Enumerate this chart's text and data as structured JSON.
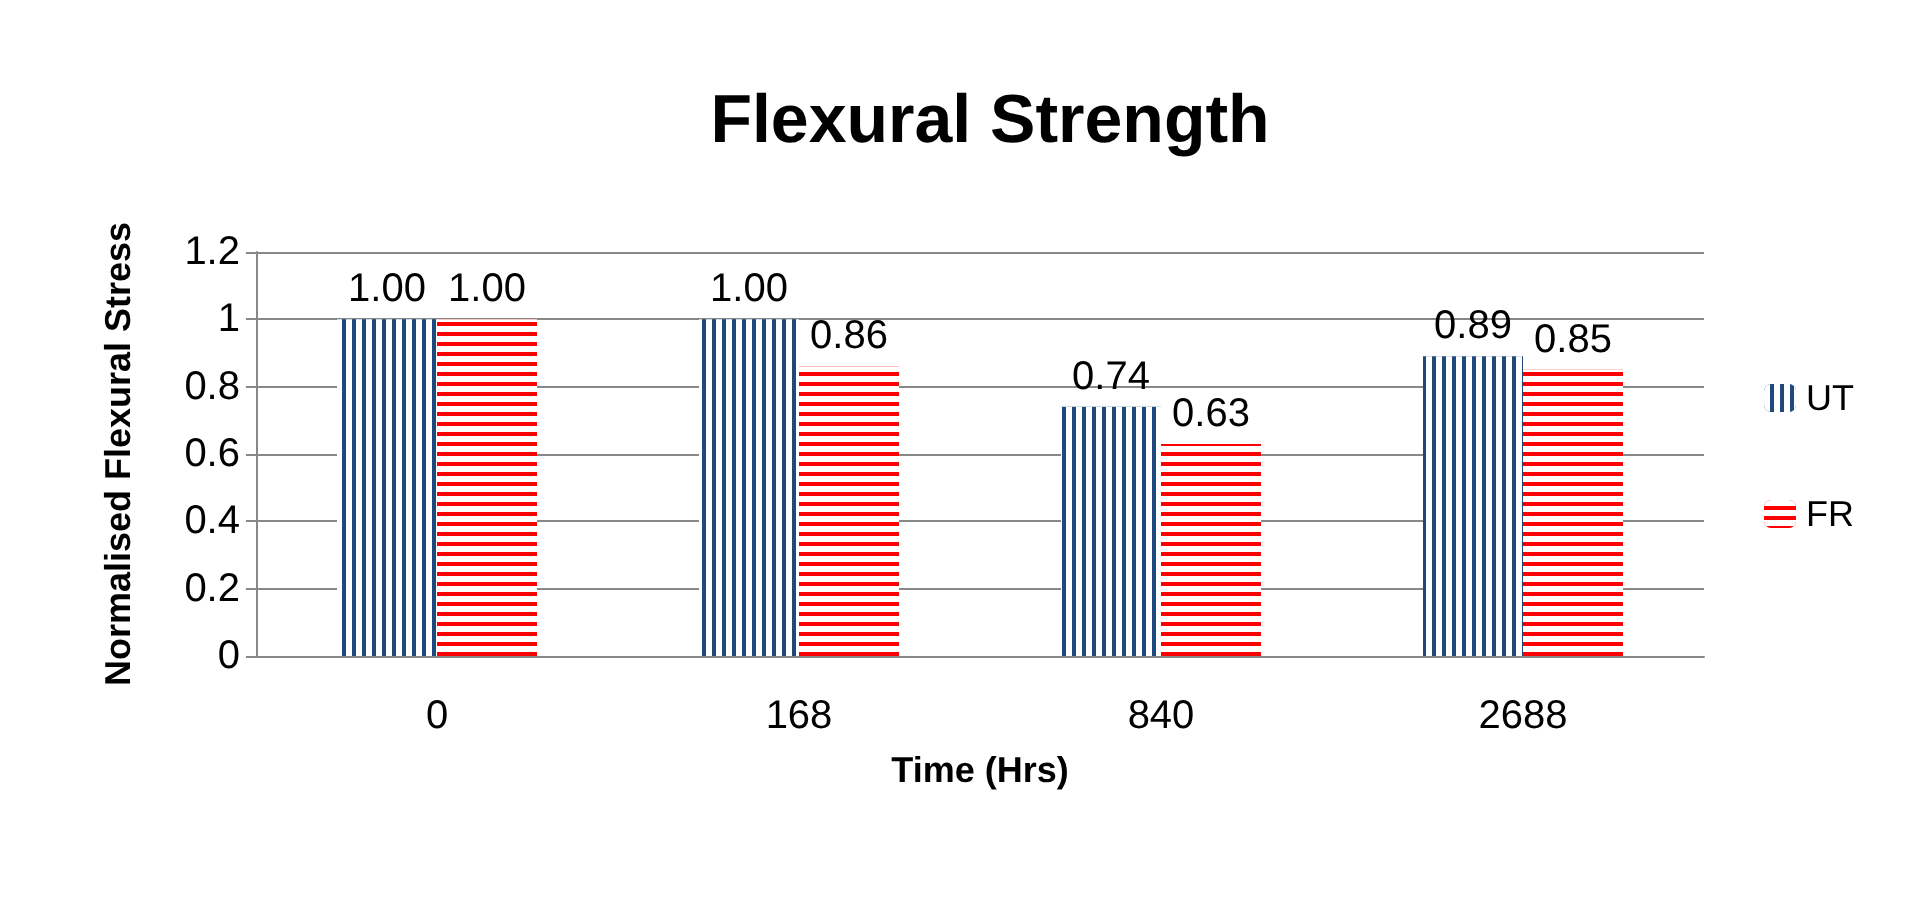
{
  "chart_data": {
    "type": "bar",
    "title": "Flexural Strength",
    "xlabel": "Time (Hrs)",
    "ylabel": "Normalised Flexural Stress",
    "categories": [
      "0",
      "168",
      "840",
      "2688"
    ],
    "series": [
      {
        "name": "UT",
        "color": "#1f497d",
        "values": [
          1.0,
          1.0,
          0.74,
          0.89
        ],
        "value_labels": [
          "1.00",
          "1.00",
          "0.74",
          "0.89"
        ]
      },
      {
        "name": "FR",
        "color": "#ff0000",
        "values": [
          1.0,
          0.86,
          0.63,
          0.85
        ],
        "value_labels": [
          "1.00",
          "0.86",
          "0.63",
          "0.85"
        ]
      }
    ],
    "ylim": [
      0,
      1.2
    ],
    "yticks": [
      0,
      0.2,
      0.4,
      0.6,
      0.8,
      1,
      1.2
    ],
    "grid": "y",
    "legend": "right"
  }
}
